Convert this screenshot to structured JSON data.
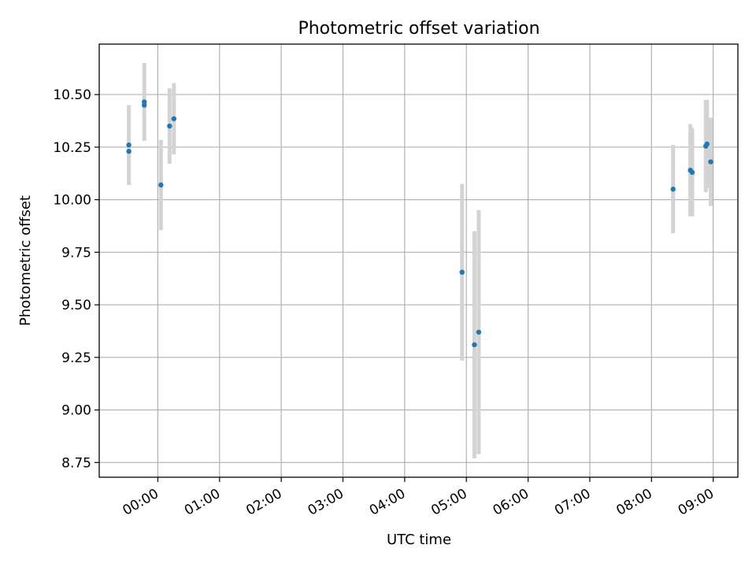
{
  "chart_data": {
    "type": "scatter",
    "title": "Photometric offset variation",
    "xlabel": "UTC time",
    "ylabel": "Photometric offset",
    "x_unit": "hours UTC (relative to 00:00)",
    "xlim": [
      -0.95,
      9.4
    ],
    "ylim": [
      8.68,
      10.74
    ],
    "x_ticks": [
      {
        "value": 0,
        "label": "00:00"
      },
      {
        "value": 1,
        "label": "01:00"
      },
      {
        "value": 2,
        "label": "02:00"
      },
      {
        "value": 3,
        "label": "03:00"
      },
      {
        "value": 4,
        "label": "04:00"
      },
      {
        "value": 5,
        "label": "05:00"
      },
      {
        "value": 6,
        "label": "06:00"
      },
      {
        "value": 7,
        "label": "07:00"
      },
      {
        "value": 8,
        "label": "08:00"
      },
      {
        "value": 9,
        "label": "09:00"
      }
    ],
    "y_ticks": [
      {
        "value": 8.75,
        "label": "8.75"
      },
      {
        "value": 9.0,
        "label": "9.00"
      },
      {
        "value": 9.25,
        "label": "9.25"
      },
      {
        "value": 9.5,
        "label": "9.50"
      },
      {
        "value": 9.75,
        "label": "9.75"
      },
      {
        "value": 10.0,
        "label": "10.00"
      },
      {
        "value": 10.25,
        "label": "10.25"
      },
      {
        "value": 10.5,
        "label": "10.50"
      }
    ],
    "grid": true,
    "colors": {
      "point": "#1f77b4",
      "error": "#d3d3d3"
    },
    "series": [
      {
        "name": "offset",
        "points": [
          {
            "x": -0.47,
            "y": 10.26,
            "err": 0.19
          },
          {
            "x": -0.47,
            "y": 10.23,
            "err": 0.0
          },
          {
            "x": -0.22,
            "y": 10.465,
            "err": 0.185
          },
          {
            "x": -0.22,
            "y": 10.45,
            "err": 0.0
          },
          {
            "x": 0.05,
            "y": 10.07,
            "err": 0.215
          },
          {
            "x": 0.19,
            "y": 10.35,
            "err": 0.18
          },
          {
            "x": 0.26,
            "y": 10.385,
            "err": 0.17
          },
          {
            "x": 4.93,
            "y": 9.655,
            "err": 0.42
          },
          {
            "x": 5.13,
            "y": 9.31,
            "err": 0.54
          },
          {
            "x": 5.2,
            "y": 9.37,
            "err": 0.58
          },
          {
            "x": 8.35,
            "y": 10.05,
            "err": 0.21
          },
          {
            "x": 8.63,
            "y": 10.14,
            "err": 0.22
          },
          {
            "x": 8.66,
            "y": 10.13,
            "err": 0.21
          },
          {
            "x": 8.88,
            "y": 10.255,
            "err": 0.22
          },
          {
            "x": 8.9,
            "y": 10.265,
            "err": 0.21
          },
          {
            "x": 8.96,
            "y": 10.18,
            "err": 0.21
          }
        ]
      }
    ]
  }
}
